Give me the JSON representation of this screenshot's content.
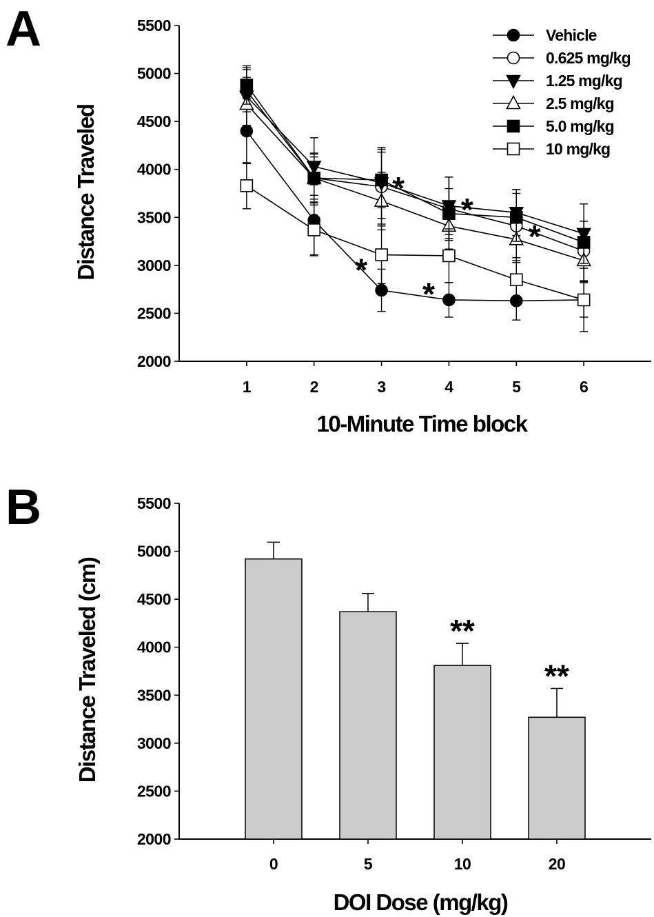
{
  "panels": {
    "a": {
      "letter": "A"
    },
    "b": {
      "letter": "B"
    }
  },
  "chart_data": [
    {
      "type": "line",
      "title": "",
      "xlabel": "10-Minute Time block",
      "ylabel": "Distance Traveled",
      "x": [
        1,
        2,
        3,
        4,
        5,
        6
      ],
      "xlim": [
        0,
        7
      ],
      "ylim": [
        2000,
        5500
      ],
      "yticks": [
        2000,
        2500,
        3000,
        3500,
        4000,
        4500,
        5000,
        5500
      ],
      "legend_position": "top-right",
      "series": [
        {
          "name": "Vehicle",
          "marker": "filled-circle",
          "values": [
            4400,
            3470,
            2740,
            2640,
            2630,
            2640
          ],
          "errors": [
            340,
            370,
            220,
            180,
            200,
            180
          ]
        },
        {
          "name": "0.625 mg/kg",
          "marker": "open-circle",
          "values": [
            4820,
            3910,
            3820,
            3590,
            3410,
            3150
          ],
          "errors": [
            220,
            250,
            390,
            330,
            380,
            310
          ]
        },
        {
          "name": "1.25 mg/kg",
          "marker": "filled-triangle-down",
          "values": [
            4760,
            4030,
            3860,
            3620,
            3550,
            3330
          ],
          "errors": [
            300,
            300,
            370,
            300,
            240,
            310
          ]
        },
        {
          "name": "2.5 mg/kg",
          "marker": "open-triangle-up",
          "values": [
            4680,
            3910,
            3670,
            3410,
            3270,
            3050
          ],
          "errors": [
            280,
            260,
            300,
            240,
            220,
            220
          ]
        },
        {
          "name": "5.0 mg/kg",
          "marker": "filled-square",
          "values": [
            4880,
            3910,
            3890,
            3540,
            3500,
            3240
          ],
          "errors": [
            200,
            220,
            290,
            260,
            250,
            220
          ]
        },
        {
          "name": "10 mg/kg",
          "marker": "open-square",
          "values": [
            3830,
            3370,
            3110,
            3100,
            2850,
            2640
          ],
          "errors": [
            240,
            260,
            300,
            280,
            230,
            330
          ]
        }
      ],
      "annotations": [
        {
          "text": "*",
          "x": 3.25,
          "y": 3860
        },
        {
          "text": "*",
          "x": 2.7,
          "y": 3010
        },
        {
          "text": "*",
          "x": 4.27,
          "y": 3640
        },
        {
          "text": "*",
          "x": 3.7,
          "y": 2760
        },
        {
          "text": "*",
          "x": 5.27,
          "y": 3360
        }
      ]
    },
    {
      "type": "bar",
      "title": "",
      "xlabel": "DOI Dose (mg/kg)",
      "ylabel": "Distance Traveled (cm)",
      "categories": [
        "0",
        "5",
        "10",
        "20"
      ],
      "values": [
        4920,
        4370,
        3810,
        3270
      ],
      "errors": [
        175,
        190,
        230,
        300
      ],
      "bar_color": "#cccccc",
      "ylim": [
        2000,
        5500
      ],
      "yticks": [
        2000,
        2500,
        3000,
        3500,
        4000,
        4500,
        5000,
        5500
      ],
      "annotations": [
        "",
        "",
        "**",
        "**"
      ]
    }
  ]
}
